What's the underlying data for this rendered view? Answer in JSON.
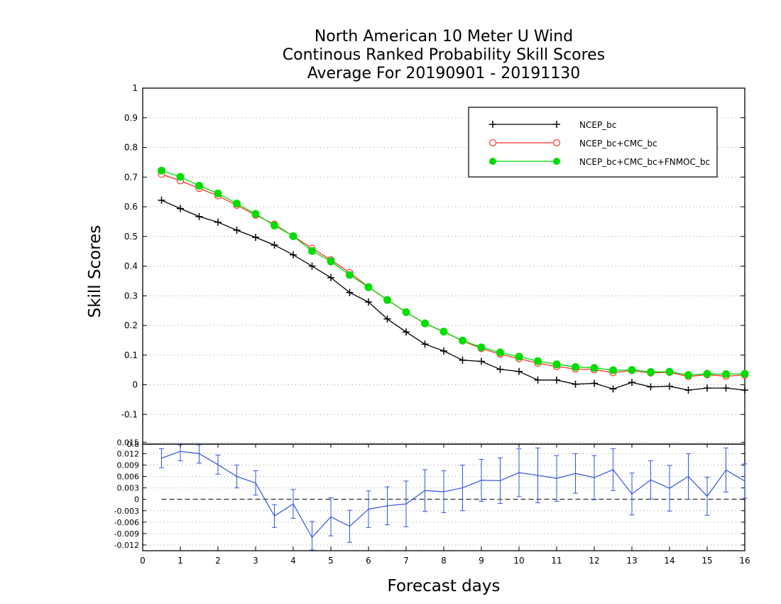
{
  "chart_data": [
    {
      "type": "line",
      "title": [
        "North American 10 Meter U Wind",
        "Continous Ranked Probability Skill Scores",
        "Average For 20190901 - 20191130"
      ],
      "xlabel": "Forecast days",
      "ylabel": "Skill Scores",
      "xlim": [
        0,
        16
      ],
      "ylim": [
        -0.2,
        1
      ],
      "xticks": [
        "0",
        "1",
        "2",
        "3",
        "4",
        "5",
        "6",
        "7",
        "8",
        "9",
        "10",
        "11",
        "12",
        "13",
        "14",
        "15",
        "16"
      ],
      "yticks": [
        "-0.1",
        "0",
        "0.1",
        "0.2",
        "0.3",
        "0.4",
        "0.5",
        "0.6",
        "0.7",
        "0.8",
        "0.9",
        "1"
      ],
      "grid": "horizontal dotted",
      "legend_position": "top-right",
      "x": [
        0.5,
        1,
        1.5,
        2,
        2.5,
        3,
        3.5,
        4,
        4.5,
        5,
        5.5,
        6,
        6.5,
        7,
        7.5,
        8,
        8.5,
        9,
        9.5,
        10,
        10.5,
        11,
        11.5,
        12,
        12.5,
        13,
        13.5,
        14,
        14.5,
        15,
        15.5,
        16
      ],
      "series": [
        {
          "name": "NCEP_bc",
          "color": "#000000",
          "marker": "plus",
          "values": [
            0.622,
            0.594,
            0.567,
            0.548,
            0.521,
            0.497,
            0.471,
            0.438,
            0.4,
            0.361,
            0.311,
            0.279,
            0.222,
            0.178,
            0.137,
            0.114,
            0.083,
            0.079,
            0.052,
            0.045,
            0.016,
            0.016,
            0.002,
            0.005,
            -0.014,
            0.008,
            -0.007,
            -0.005,
            -0.018,
            -0.011,
            -0.011,
            -0.018
          ]
        },
        {
          "name": "NCEP_bc+CMC_bc",
          "color": "#ff3333",
          "marker": "open-circle",
          "values": [
            0.71,
            0.688,
            0.662,
            0.637,
            0.605,
            0.572,
            0.541,
            0.501,
            0.46,
            0.421,
            0.378,
            0.33,
            0.286,
            0.245,
            0.206,
            0.179,
            0.148,
            0.122,
            0.103,
            0.088,
            0.073,
            0.062,
            0.053,
            0.051,
            0.041,
            0.048,
            0.04,
            0.042,
            0.028,
            0.034,
            0.029,
            0.033
          ]
        },
        {
          "name": "NCEP_bc+CMC_bc+FNMOC_bc",
          "color": "#00dd00",
          "marker": "filled-circle",
          "values": [
            0.722,
            0.701,
            0.671,
            0.645,
            0.611,
            0.576,
            0.537,
            0.501,
            0.451,
            0.416,
            0.37,
            0.329,
            0.286,
            0.245,
            0.207,
            0.179,
            0.149,
            0.126,
            0.109,
            0.095,
            0.08,
            0.069,
            0.06,
            0.057,
            0.049,
            0.05,
            0.043,
            0.044,
            0.033,
            0.037,
            0.036,
            0.037
          ]
        }
      ]
    },
    {
      "type": "line",
      "subtype": "difference with error bars",
      "xlim": [
        0,
        16
      ],
      "ylim": [
        -0.0135,
        0.0145
      ],
      "yticks": [
        "-0.012",
        "-0.009",
        "-0.006",
        "-0.003",
        "0",
        "0.003",
        "0.006",
        "0.009",
        "0.012",
        "0.015"
      ],
      "top_tick_label": "0.8",
      "zero_line": "dashed",
      "grid": "horizontal dotted",
      "x": [
        0.5,
        1,
        1.5,
        2,
        2.5,
        3,
        3.5,
        4,
        4.5,
        5,
        5.5,
        6,
        6.5,
        7,
        7.5,
        8,
        8.5,
        9,
        9.5,
        10,
        10.5,
        11,
        11.5,
        12,
        12.5,
        13,
        13.5,
        14,
        14.5,
        15,
        15.5,
        16
      ],
      "series": [
        {
          "color": "#3355dd",
          "values": [
            0.0108,
            0.0126,
            0.012,
            0.0091,
            0.006,
            0.0043,
            -0.0044,
            -0.0012,
            -0.01,
            -0.0046,
            -0.0071,
            -0.0026,
            -0.0017,
            -0.0012,
            0.0023,
            0.002,
            0.003,
            0.005,
            0.0049,
            0.007,
            0.0063,
            0.0055,
            0.0068,
            0.0057,
            0.0078,
            0.0014,
            0.0051,
            0.0029,
            0.006,
            0.0008,
            0.0077,
            0.0048
          ],
          "error": [
            0.0025,
            0.0025,
            0.0025,
            0.0025,
            0.003,
            0.0032,
            0.003,
            0.0038,
            0.0042,
            0.005,
            0.0042,
            0.0048,
            0.005,
            0.006,
            0.0055,
            0.0055,
            0.006,
            0.0055,
            0.006,
            0.0063,
            0.0072,
            0.006,
            0.0052,
            0.0058,
            0.0055,
            0.0055,
            0.005,
            0.006,
            0.006,
            0.005,
            0.0058,
            0.0045
          ]
        }
      ]
    }
  ]
}
